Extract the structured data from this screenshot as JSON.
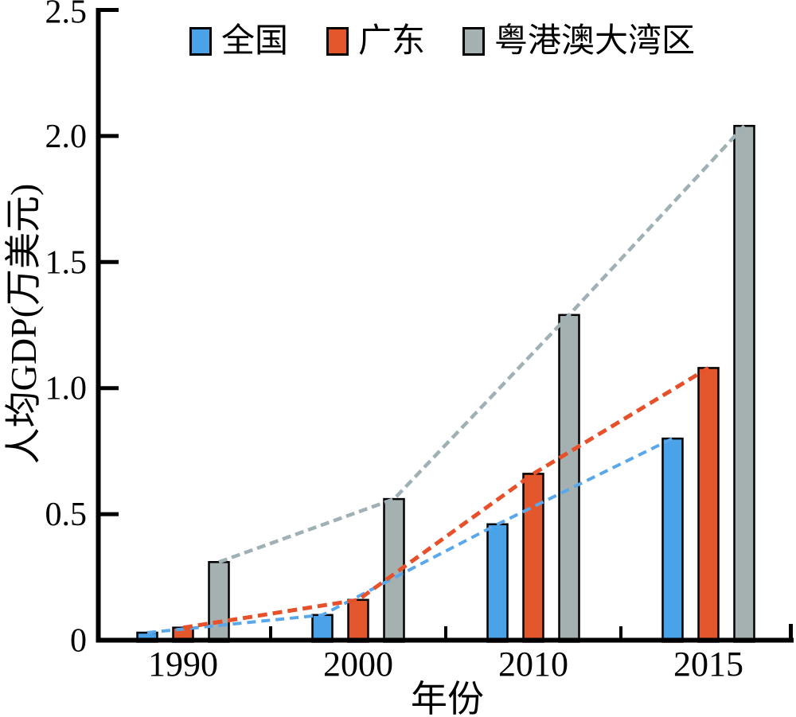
{
  "chart_data": {
    "type": "bar",
    "title": "",
    "xlabel": "年份",
    "ylabel": "人均GDP(万美元)",
    "categories": [
      "1990",
      "2000",
      "2010",
      "2015"
    ],
    "series": [
      {
        "name": "全国",
        "values": [
          0.03,
          0.1,
          0.46,
          0.8
        ],
        "bar_color": "#4aa2e8",
        "line_color": "#5aa7ea"
      },
      {
        "name": "广东",
        "values": [
          0.05,
          0.16,
          0.66,
          1.08
        ],
        "bar_color": "#e4572c",
        "line_color": "#e6512c"
      },
      {
        "name": "粤港澳大湾区",
        "values": [
          0.31,
          0.56,
          1.29,
          2.04
        ],
        "bar_color": "#a5b0b0",
        "line_color": "#9fb1b5"
      }
    ],
    "ylim": [
      0,
      2.5
    ],
    "yticks": [
      "0",
      "0.5",
      "1.0",
      "1.5",
      "2.0",
      "2.5"
    ],
    "legend_position": "top",
    "grid": false,
    "bar_border_color": "#000000",
    "trend_lines": "dashed, connecting bar tops of each series",
    "axis_color": "#000000"
  }
}
